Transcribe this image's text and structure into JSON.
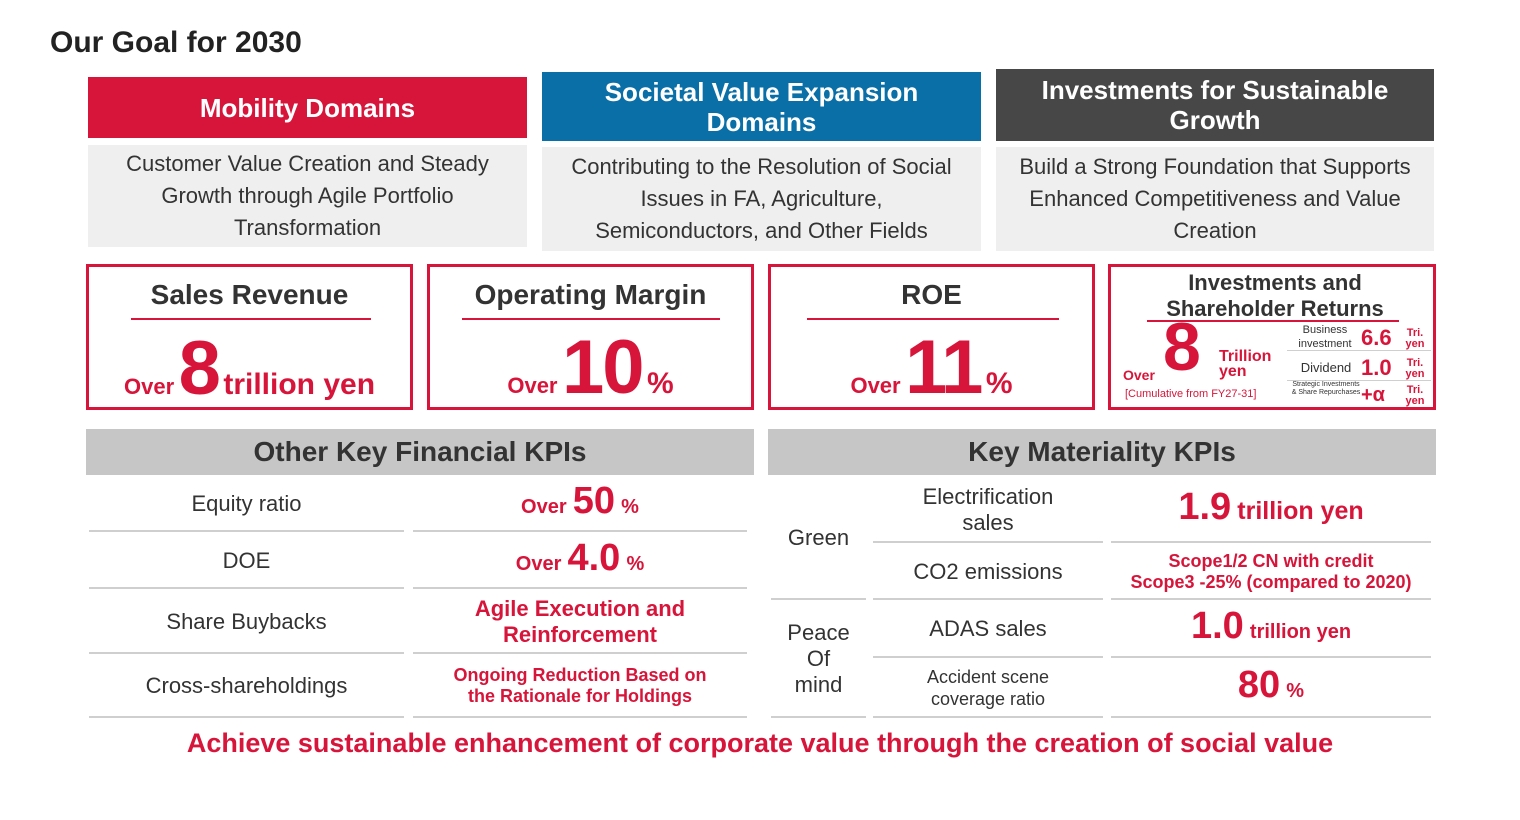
{
  "title": "Our Goal for 2030",
  "colors": {
    "accent": "#d7153a",
    "mobility": "#d7153a",
    "societal": "#0a6fa6",
    "investments": "#474747",
    "panel_bg": "#efefef",
    "section_bg": "#c6c6c6"
  },
  "domains": [
    {
      "heading": "Mobility Domains",
      "body": "Customer Value Creation and Steady Growth through Agile Portfolio Transformation"
    },
    {
      "heading": "Societal Value Expansion Domains",
      "body": "Contributing to the Resolution of Social Issues in FA, Agriculture, Semiconductors, and Other Fields"
    },
    {
      "heading": "Investments for Sustainable Growth",
      "body": "Build a Strong Foundation that Supports Enhanced Competitiveness and Value Creation"
    }
  ],
  "kpis": {
    "sales": {
      "label": "Sales Revenue",
      "prefix": "Over",
      "value": "8",
      "unit": "trillion yen"
    },
    "margin": {
      "label": "Operating Margin",
      "prefix": "Over",
      "value": "10",
      "unit": "%"
    },
    "roe": {
      "label": "ROE",
      "prefix": "Over",
      "value": "11",
      "unit": "%"
    },
    "investments": {
      "label": "Investments and Shareholder Returns",
      "prefix": "Over",
      "value": "8",
      "unit": "Trillion yen",
      "note": "[Cumulative from FY27-31]",
      "breakdown": [
        {
          "label": "Business investment",
          "value": "6.6",
          "unit": "Tri. yen"
        },
        {
          "label": "Dividend",
          "value": "1.0",
          "unit": "Tri. yen"
        },
        {
          "label": "Strategic Investments & Share Repurchases",
          "value": "+α",
          "unit": "Tri. yen"
        }
      ]
    }
  },
  "financial": {
    "heading": "Other Key Financial KPIs",
    "rows": [
      {
        "label": "Equity ratio",
        "prefix": "Over",
        "value": "50",
        "unit": "%"
      },
      {
        "label": "DOE",
        "prefix": "Over",
        "value": "4.0",
        "unit": "%"
      },
      {
        "label": "Share Buybacks",
        "text": "Agile Execution and Reinforcement"
      },
      {
        "label": "Cross-shareholdings",
        "text": "Ongoing Reduction Based on the Rationale for Holdings"
      }
    ]
  },
  "materiality": {
    "heading": "Key Materiality KPIs",
    "groups": [
      {
        "name": "Green",
        "rows": [
          {
            "label": "Electrification sales",
            "value": "1.9",
            "unit": "trillion yen"
          },
          {
            "label": "CO2 emissions",
            "text_line1": "Scope1/2 CN with credit",
            "text_line2": "Scope3 -25% (compared to 2020)"
          }
        ]
      },
      {
        "name": "Peace Of mind",
        "rows": [
          {
            "label": "ADAS sales",
            "value": "1.0",
            "unit": "trillion yen"
          },
          {
            "label": "Accident scene coverage ratio",
            "value": "80",
            "unit": "%"
          }
        ]
      }
    ]
  },
  "footer": "Achieve sustainable enhancement of corporate value through the creation of social value"
}
